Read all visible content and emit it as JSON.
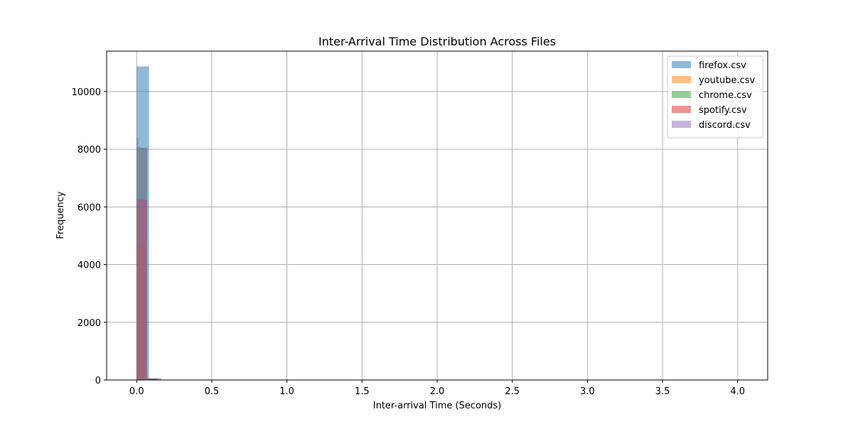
{
  "chart_data": {
    "type": "histogram",
    "title": "Inter-Arrival Time Distribution Across Files",
    "xlabel": "Inter-arrival Time (Seconds)",
    "ylabel": "Frequency",
    "xlim": [
      -0.2,
      4.2
    ],
    "ylim": [
      0,
      11400
    ],
    "xticks": [
      0.0,
      0.5,
      1.0,
      1.5,
      2.0,
      2.5,
      3.0,
      3.5,
      4.0
    ],
    "xtick_labels": [
      "0.0",
      "0.5",
      "1.0",
      "1.5",
      "2.0",
      "2.5",
      "3.0",
      "3.5",
      "4.0"
    ],
    "yticks": [
      0,
      2000,
      4000,
      6000,
      8000,
      10000
    ],
    "ytick_labels": [
      "0",
      "2000",
      "4000",
      "6000",
      "8000",
      "10000"
    ],
    "grid": true,
    "legend_position": "upper right",
    "bar_alpha": 0.5,
    "series": [
      {
        "name": "firefox.csv",
        "color": "#1f77b4",
        "bins": [
          {
            "x0": 0.0,
            "x1": 0.082,
            "value": 10870
          },
          {
            "x0": 0.082,
            "x1": 0.164,
            "value": 60
          },
          {
            "x0": 0.164,
            "x1": 0.246,
            "value": 12
          }
        ]
      },
      {
        "name": "youtube.csv",
        "color": "#ff7f0e",
        "bins": [
          {
            "x0": 0.0,
            "x1": 0.06,
            "value": 4750
          },
          {
            "x0": 0.06,
            "x1": 0.12,
            "value": 40
          },
          {
            "x0": 0.12,
            "x1": 0.18,
            "value": 8
          }
        ]
      },
      {
        "name": "chrome.csv",
        "color": "#2ca02c",
        "bins": [
          {
            "x0": 0.0,
            "x1": 0.07,
            "value": 8050
          },
          {
            "x0": 0.07,
            "x1": 0.14,
            "value": 50
          },
          {
            "x0": 0.14,
            "x1": 0.21,
            "value": 10
          }
        ]
      },
      {
        "name": "spotify.csv",
        "color": "#d62728",
        "bins": [
          {
            "x0": 0.0,
            "x1": 0.07,
            "value": 6250
          },
          {
            "x0": 0.07,
            "x1": 0.14,
            "value": 45
          },
          {
            "x0": 0.14,
            "x1": 0.21,
            "value": 9
          }
        ]
      },
      {
        "name": "discord.csv",
        "color": "#9467bd",
        "bins": [
          {
            "x0": 0.0,
            "x1": 0.012,
            "value": 8400
          },
          {
            "x0": 0.012,
            "x1": 0.024,
            "value": 8100
          },
          {
            "x0": 0.024,
            "x1": 0.07,
            "value": 8050
          },
          {
            "x0": 0.07,
            "x1": 0.1,
            "value": 20
          }
        ]
      }
    ]
  }
}
